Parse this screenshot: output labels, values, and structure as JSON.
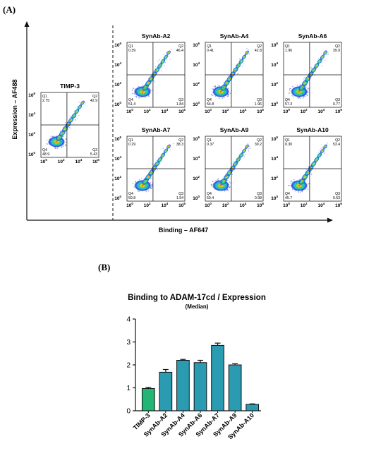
{
  "panel_a": {
    "label": "(A)",
    "x_axis_label": "Binding – AF647",
    "y_axis_label": "Expression – AF488",
    "plots": [
      {
        "title": "TIMP-3",
        "q1": "2.75",
        "q2": "42.9",
        "q3": "5.43",
        "q4": "48.9"
      },
      {
        "title": "SynAb-A2",
        "q1": "0.39",
        "q2": "46.4",
        "q3": "1.84",
        "q4": "51.4"
      },
      {
        "title": "SynAb-A4",
        "q1": "0.41",
        "q2": "42.8",
        "q3": "1.96",
        "q4": "54.8"
      },
      {
        "title": "SynAb-A6",
        "q1": "1.96",
        "q2": "39.9",
        "q3": "0.77",
        "q4": "57.3"
      },
      {
        "title": "SynAb-A7",
        "q1": "0.29",
        "q2": "38.3",
        "q3": "1.54",
        "q4": "59.8"
      },
      {
        "title": "SynAb-A9",
        "q1": "0.37",
        "q2": "39.2",
        "q3": "0.98",
        "q4": "59.4"
      },
      {
        "title": "SynAb-A10",
        "q1": "0.30",
        "q2": "53.4",
        "q3": "0.63",
        "q4": "45.7"
      }
    ],
    "quadrant_names": {
      "q1": "Q1",
      "q2": "Q2",
      "q3": "Q3",
      "q4": "Q4"
    },
    "x_tick_base": "10",
    "x_tick_exponents": [
      "0",
      "2",
      "4",
      "6"
    ],
    "y_tick_base": "10",
    "y_tick_exponents": [
      "6",
      "4",
      "2",
      "0"
    ]
  },
  "panel_b": {
    "label": "(B)"
  },
  "chart_data": {
    "type": "bar",
    "title": "Binding to ADAM-17cd / Expression",
    "subtitle": "(Median)",
    "categories": [
      "TIMP-3",
      "SynAb-A2",
      "SynAb-A4",
      "SynAb-A6",
      "SynAb-A7",
      "SynAb-A9",
      "SynAb-A10"
    ],
    "values": [
      0.97,
      1.68,
      2.2,
      2.1,
      2.85,
      2.0,
      0.28
    ],
    "errors": [
      0.05,
      0.12,
      0.04,
      0.1,
      0.1,
      0.05,
      0.02
    ],
    "bar_colors": [
      "#22b573",
      "#2a9bb0",
      "#2a9bb0",
      "#2a9bb0",
      "#2a9bb0",
      "#2a9bb0",
      "#2a9bb0"
    ],
    "ylim": [
      0,
      4
    ],
    "yticks": [
      "0",
      "1",
      "2",
      "3",
      "4"
    ],
    "grid": false,
    "xlabel": "",
    "ylabel": ""
  }
}
